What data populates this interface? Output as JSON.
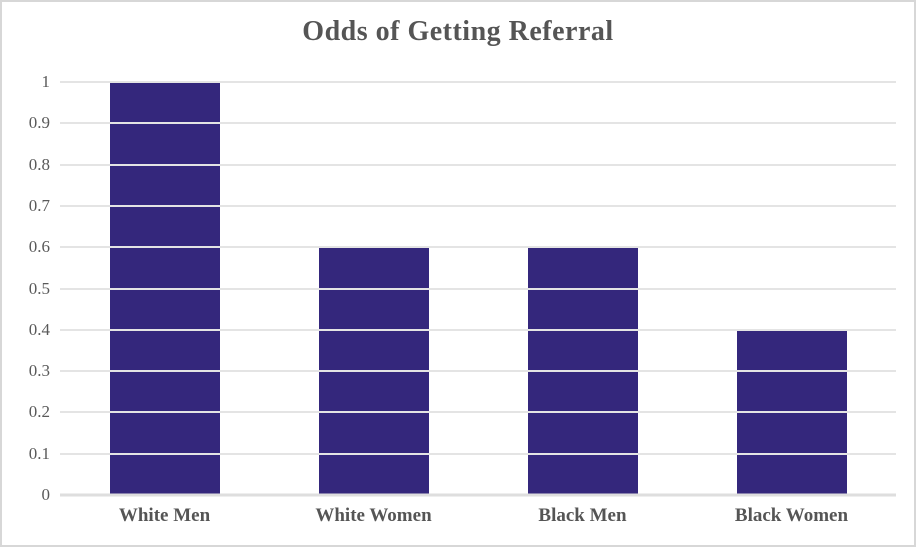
{
  "chart_data": {
    "type": "bar",
    "title": "Odds of Getting Referral",
    "categories": [
      "White Men",
      "White Women",
      "Black Men",
      "Black Women"
    ],
    "values": [
      1,
      0.6,
      0.6,
      0.4
    ],
    "xlabel": "",
    "ylabel": "",
    "ylim": [
      0,
      1
    ],
    "yticks": [
      0,
      0.1,
      0.2,
      0.3,
      0.4,
      0.5,
      0.6,
      0.7,
      0.8,
      0.9,
      1
    ],
    "ytick_labels": [
      "0",
      "0.1",
      "0.2",
      "0.3",
      "0.4",
      "0.5",
      "0.6",
      "0.7",
      "0.8",
      "0.9",
      "1"
    ],
    "grid": "horizontal",
    "legend": "none",
    "colors": {
      "bar": "#34277c",
      "text": "#555555",
      "axis_text": "#595959",
      "gridline": "#e4e4e4",
      "baseline": "#dedede",
      "background": "#ffffff",
      "frame_border": "#d7d7d7"
    }
  }
}
